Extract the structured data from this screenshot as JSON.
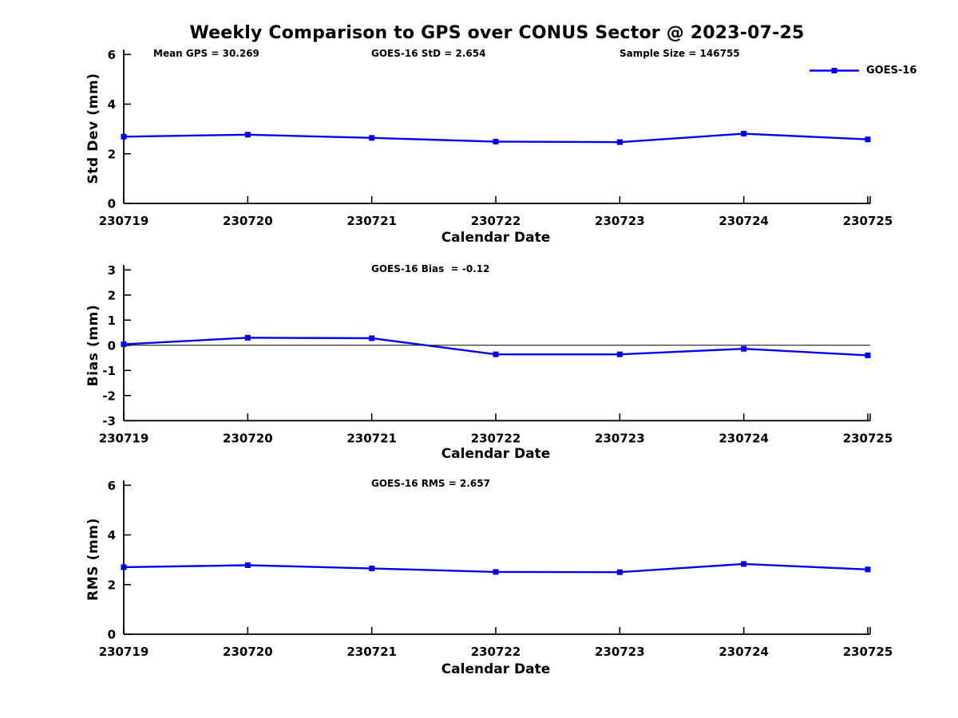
{
  "figure": {
    "title": "Weekly Comparison to GPS over CONUS Sector @ 2023-07-25",
    "legend": {
      "label": "GOES-16",
      "series_color": "#0000EE"
    }
  },
  "chart_data": [
    {
      "type": "line",
      "name": "std-dev",
      "annotations": [
        "Mean GPS = 30.269",
        "GOES-16 StD = 2.654",
        "Sample Size = 146755"
      ],
      "xlabel": "Calendar Date",
      "ylabel": "Std Dev (mm)",
      "categories": [
        "230719",
        "230720",
        "230721",
        "230722",
        "230723",
        "230724",
        "230725"
      ],
      "series": [
        {
          "name": "GOES-16",
          "color": "#0000EE",
          "marker": "square",
          "values": [
            2.69,
            2.77,
            2.64,
            2.49,
            2.47,
            2.81,
            2.58
          ]
        }
      ],
      "ylim": [
        0,
        6
      ],
      "yticks": [
        0,
        2,
        4,
        6
      ],
      "grid": false,
      "zero_line": false,
      "legend_position": "top-right-outside"
    },
    {
      "type": "line",
      "name": "bias",
      "annotation": "GOES-16 Bias  = -0.12",
      "xlabel": "Calendar Date",
      "ylabel": "Bias (mm)",
      "categories": [
        "230719",
        "230720",
        "230721",
        "230722",
        "230723",
        "230724",
        "230725"
      ],
      "series": [
        {
          "name": "GOES-16",
          "color": "#0000EE",
          "marker": "square",
          "values": [
            0.04,
            0.3,
            0.28,
            -0.36,
            -0.36,
            -0.14,
            -0.4
          ]
        }
      ],
      "ylim": [
        -3,
        3
      ],
      "yticks": [
        -3,
        -2,
        -1,
        0,
        1,
        2,
        3
      ],
      "grid": false,
      "zero_line": true,
      "legend_position": "none"
    },
    {
      "type": "line",
      "name": "rms",
      "annotation": "GOES-16 RMS = 2.657",
      "xlabel": "Calendar Date",
      "ylabel": "RMS (mm)",
      "categories": [
        "230719",
        "230720",
        "230721",
        "230722",
        "230723",
        "230724",
        "230725"
      ],
      "series": [
        {
          "name": "GOES-16",
          "color": "#0000EE",
          "marker": "square",
          "values": [
            2.7,
            2.78,
            2.65,
            2.51,
            2.5,
            2.83,
            2.61
          ]
        }
      ],
      "ylim": [
        0,
        6
      ],
      "yticks": [
        0,
        2,
        4,
        6
      ],
      "grid": false,
      "zero_line": false,
      "legend_position": "none"
    }
  ]
}
